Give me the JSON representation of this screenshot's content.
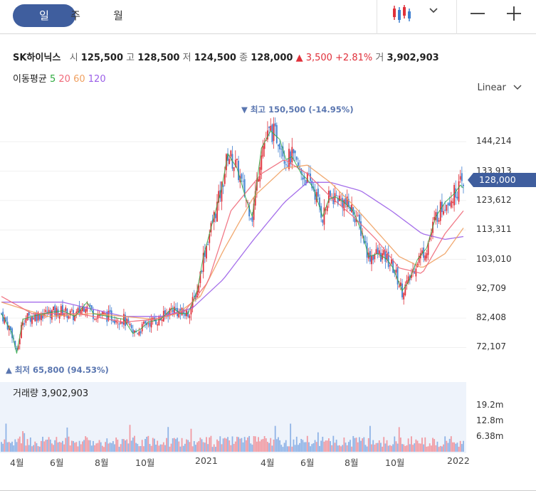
{
  "tabs": [
    {
      "label": "일",
      "active": true
    },
    {
      "label": "주",
      "active": false
    },
    {
      "label": "월",
      "active": false
    }
  ],
  "header": {
    "name": "SK하이닉스",
    "open_label": "시",
    "open": "125,500",
    "high_label": "고",
    "high": "128,500",
    "low_label": "저",
    "low": "124,500",
    "close_label": "종",
    "close": "128,000",
    "change": "▲ 3,500 +2.81%",
    "vol_label": "거",
    "volume": "3,902,903"
  },
  "ma": {
    "label": "이동평균",
    "p5": "5",
    "p20": "20",
    "p60": "60",
    "p120": "120",
    "colors": {
      "p5": "#2eaa3f",
      "p20": "#f06a7a",
      "p60": "#f0a060",
      "p120": "#9b5fe8"
    }
  },
  "scale_label": "Linear",
  "max_label": "▼ 최고 150,500 (-14.95%)",
  "min_label": "▲ 최저 65,800 (94.53%)",
  "volume_label": "거래량 3,902,903",
  "current_price": "128,000",
  "colors": {
    "up": "#e0303a",
    "down": "#3f7fd0",
    "accent": "#3f5e9e"
  },
  "chart_data": {
    "type": "candlestick",
    "y_ticks": [
      "144,214",
      "133,913",
      "123,612",
      "113,311",
      "103,010",
      "92,709",
      "82,408",
      "72,107"
    ],
    "vol_ticks": [
      "19.2m",
      "12.8m",
      "6.38m"
    ],
    "x_ticks": [
      "4월",
      "6월",
      "8월",
      "10월",
      "2021",
      "4월",
      "6월",
      "8월",
      "10월",
      "2022"
    ],
    "ylim": [
      63000,
      156000
    ],
    "close_path": [
      [
        0,
        84000
      ],
      [
        7,
        77000
      ],
      [
        10,
        70000
      ],
      [
        14,
        82000
      ],
      [
        20,
        83000
      ],
      [
        28,
        84000
      ],
      [
        40,
        85000
      ],
      [
        48,
        83000
      ],
      [
        56,
        88000
      ],
      [
        60,
        84000
      ],
      [
        70,
        83000
      ],
      [
        80,
        82000
      ],
      [
        86,
        77000
      ],
      [
        92,
        79000
      ],
      [
        96,
        81000
      ],
      [
        104,
        82000
      ],
      [
        112,
        86000
      ],
      [
        117,
        84000
      ],
      [
        122,
        84000
      ],
      [
        128,
        92000
      ],
      [
        132,
        104000
      ],
      [
        138,
        116000
      ],
      [
        144,
        128000
      ],
      [
        148,
        140000
      ],
      [
        154,
        135000
      ],
      [
        160,
        124000
      ],
      [
        164,
        118000
      ],
      [
        170,
        142000
      ],
      [
        176,
        148000
      ],
      [
        182,
        145000
      ],
      [
        186,
        138000
      ],
      [
        190,
        139000
      ],
      [
        196,
        133000
      ],
      [
        200,
        131000
      ],
      [
        204,
        128000
      ],
      [
        210,
        118000
      ],
      [
        214,
        124000
      ],
      [
        218,
        125000
      ],
      [
        224,
        123000
      ],
      [
        230,
        120000
      ],
      [
        236,
        112000
      ],
      [
        240,
        104000
      ],
      [
        246,
        105000
      ],
      [
        252,
        103000
      ],
      [
        256,
        100000
      ],
      [
        262,
        92000
      ],
      [
        266,
        95000
      ],
      [
        272,
        103000
      ],
      [
        278,
        107000
      ],
      [
        284,
        118000
      ],
      [
        290,
        123000
      ],
      [
        296,
        126000
      ],
      [
        300,
        129000
      ],
      [
        302,
        128000
      ]
    ],
    "ma_paths": {
      "p20": [
        [
          0,
          90000
        ],
        [
          20,
          84000
        ],
        [
          50,
          84000
        ],
        [
          80,
          81000
        ],
        [
          100,
          82000
        ],
        [
          120,
          85000
        ],
        [
          135,
          95000
        ],
        [
          150,
          120000
        ],
        [
          170,
          133000
        ],
        [
          185,
          138000
        ],
        [
          200,
          133000
        ],
        [
          215,
          125000
        ],
        [
          230,
          118000
        ],
        [
          245,
          110000
        ],
        [
          260,
          100000
        ],
        [
          275,
          98000
        ],
        [
          290,
          112000
        ],
        [
          302,
          120000
        ]
      ],
      "p60": [
        [
          0,
          88000
        ],
        [
          30,
          83000
        ],
        [
          60,
          84000
        ],
        [
          80,
          83000
        ],
        [
          100,
          82000
        ],
        [
          115,
          84000
        ],
        [
          130,
          90000
        ],
        [
          145,
          106000
        ],
        [
          165,
          125000
        ],
        [
          185,
          135000
        ],
        [
          200,
          136000
        ],
        [
          215,
          130000
        ],
        [
          230,
          122000
        ],
        [
          245,
          113000
        ],
        [
          260,
          104000
        ],
        [
          275,
          100000
        ],
        [
          290,
          105000
        ],
        [
          302,
          114000
        ]
      ],
      "p120": [
        [
          0,
          88000
        ],
        [
          40,
          88000
        ],
        [
          80,
          83000
        ],
        [
          105,
          83000
        ],
        [
          125,
          86000
        ],
        [
          145,
          96000
        ],
        [
          165,
          110000
        ],
        [
          185,
          123000
        ],
        [
          200,
          130000
        ],
        [
          215,
          130000
        ],
        [
          235,
          127000
        ],
        [
          255,
          120000
        ],
        [
          275,
          112000
        ],
        [
          290,
          110000
        ],
        [
          302,
          111000
        ]
      ]
    }
  }
}
